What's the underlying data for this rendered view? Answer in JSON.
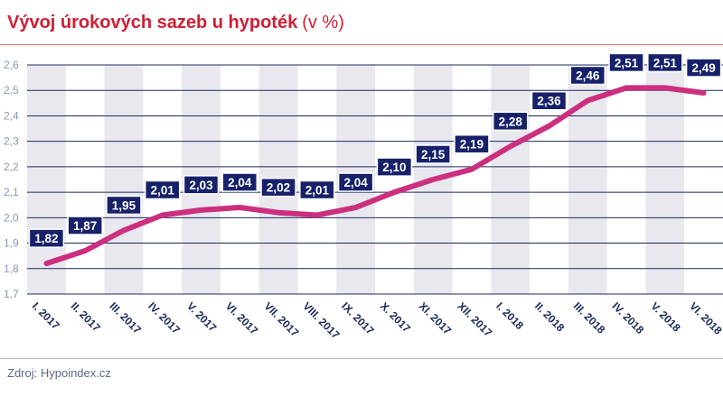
{
  "title": "Vývoj úrokových sazeb u hypoték",
  "title_unit": "(v %)",
  "source": "Zdroj: Hypoindex.cz",
  "chart_data": {
    "type": "line",
    "categories": [
      "I. 2017",
      "II. 2017",
      "III. 2017",
      "IV. 2017",
      "V. 2017",
      "VI. 2017",
      "VII. 2017",
      "VIII. 2017",
      "IX. 2017",
      "X. 2017",
      "XI. 2017",
      "XII. 2017",
      "I. 2018",
      "II. 2018",
      "III. 2018",
      "IV. 2018",
      "V. 2018",
      "VI. 2018"
    ],
    "series": [
      {
        "values": [
          1.82,
          1.87,
          1.95,
          2.01,
          2.03,
          2.04,
          2.02,
          2.01,
          2.04,
          2.1,
          2.15,
          2.19,
          2.28,
          2.36,
          2.46,
          2.51,
          2.51,
          2.49
        ]
      }
    ],
    "data_labels": [
      "1,82",
      "1,87",
      "1,95",
      "2,01",
      "2,03",
      "2,04",
      "2,02",
      "2,01",
      "2,04",
      "2,10",
      "2,15",
      "2,19",
      "2,28",
      "2,36",
      "2,46",
      "2,51",
      "2,51",
      "2,49"
    ],
    "y_ticks": [
      1.7,
      1.8,
      1.9,
      2.0,
      2.1,
      2.2,
      2.3,
      2.4,
      2.5,
      2.6
    ],
    "y_tick_labels": [
      "1,7",
      "1,8",
      "1,9",
      "2,0",
      "2,1",
      "2,2",
      "2,3",
      "2,4",
      "2,5",
      "2,6"
    ],
    "ylim": [
      1.7,
      2.6
    ],
    "grid": true,
    "colors": {
      "line": "#cc2f7f",
      "label_box": "#16216a",
      "label_text": "#ffffff",
      "band": "#e8e8ee",
      "grid": "#1b2a5c",
      "title": "#cf1e34"
    }
  }
}
